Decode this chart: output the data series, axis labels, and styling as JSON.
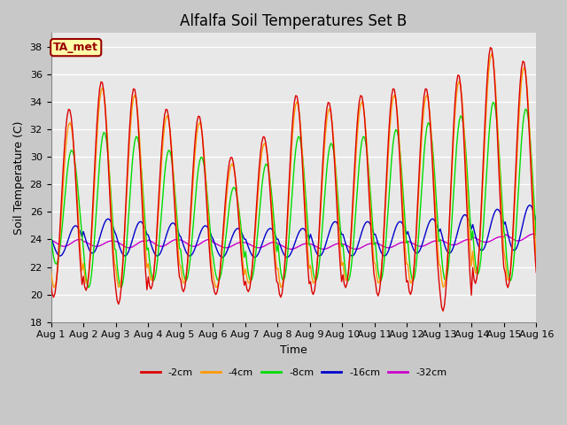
{
  "title": "Alfalfa Soil Temperatures Set B",
  "xlabel": "Time",
  "ylabel": "Soil Temperature (C)",
  "ylim": [
    18,
    39
  ],
  "yticks": [
    18,
    20,
    22,
    24,
    26,
    28,
    30,
    32,
    34,
    36,
    38
  ],
  "x_labels": [
    "Aug 1",
    "Aug 2",
    "Aug 3",
    "Aug 4",
    "Aug 5",
    "Aug 6",
    "Aug 7",
    "Aug 8",
    "Aug 9",
    "Aug 10",
    "Aug 11",
    "Aug 12",
    "Aug 13",
    "Aug 14",
    "Aug 15",
    "Aug 16"
  ],
  "series_colors": {
    "-2cm": "#dd0000",
    "-4cm": "#ff9900",
    "-8cm": "#00dd00",
    "-16cm": "#0000cc",
    "-32cm": "#cc00cc"
  },
  "annotation_text": "TA_met",
  "annotation_bg": "#ffffaa",
  "annotation_border": "#990000",
  "bg_color": "#e8e8e8",
  "grid_color": "#ffffff",
  "title_fontsize": 12,
  "axis_fontsize": 9,
  "tick_fontsize": 8
}
